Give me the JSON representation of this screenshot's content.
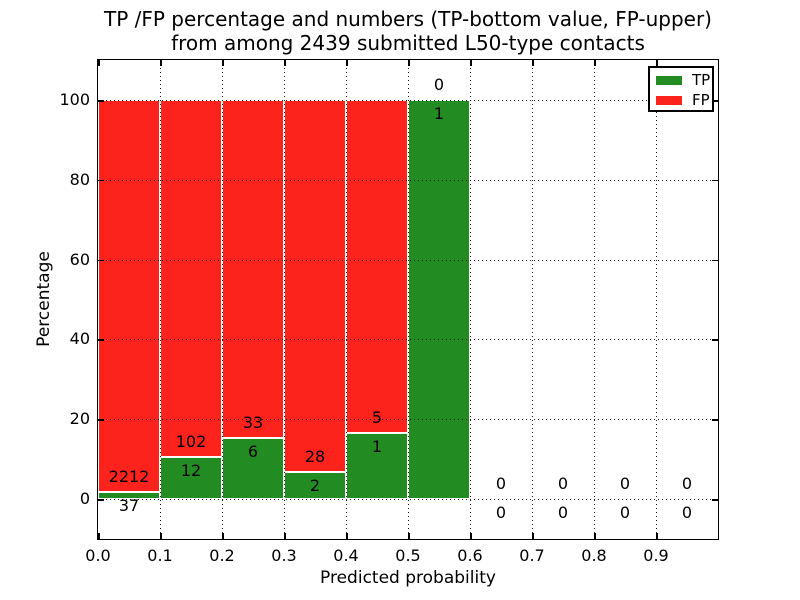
{
  "title": {
    "line1": "TP /FP percentage and numbers (TP-bottom value, FP-upper)",
    "line2": "from among 2439 submitted L50-type contacts"
  },
  "chart_data": {
    "type": "bar",
    "stacked": true,
    "normalization": "each bin stacked to 100% (TP bottom, FP top)",
    "title": "TP /FP percentage and numbers (TP-bottom value, FP-upper)\nfrom among 2439 submitted L50-type contacts",
    "xlabel": "Predicted probability",
    "ylabel": "Percentage",
    "total_contacts": 2439,
    "bin_width": 0.1,
    "bin_starts": [
      0.0,
      0.1,
      0.2,
      0.3,
      0.4,
      0.5,
      0.6,
      0.7,
      0.8,
      0.9
    ],
    "categories": [
      "0.0-0.1",
      "0.1-0.2",
      "0.2-0.3",
      "0.3-0.4",
      "0.4-0.5",
      "0.5-0.6",
      "0.6-0.7",
      "0.7-0.8",
      "0.8-0.9",
      "0.9-1.0"
    ],
    "series": [
      {
        "name": "TP",
        "color": "#228b22",
        "counts": [
          37,
          12,
          6,
          2,
          1,
          1,
          0,
          0,
          0,
          0
        ]
      },
      {
        "name": "FP",
        "color": "#fb231c",
        "counts": [
          2212,
          102,
          33,
          28,
          5,
          0,
          0,
          0,
          0,
          0
        ]
      }
    ],
    "bar_value_labels": "raw counts printed per bin: FP count above TP/FP boundary, TP count below it",
    "xlim": [
      0.0,
      1.0
    ],
    "ylim": [
      -10,
      110
    ],
    "xticks": [
      0.0,
      0.1,
      0.2,
      0.3,
      0.4,
      0.5,
      0.6,
      0.7,
      0.8,
      0.9
    ],
    "xtick_labels": [
      "0.0",
      "0.1",
      "0.2",
      "0.3",
      "0.4",
      "0.5",
      "0.6",
      "0.7",
      "0.8",
      "0.9"
    ],
    "yticks": [
      0,
      20,
      40,
      60,
      80,
      100
    ],
    "ytick_labels": [
      "0",
      "20",
      "40",
      "60",
      "80",
      "100"
    ],
    "grid": true,
    "grid_style": "dotted",
    "legend": {
      "position": "upper right",
      "entries": [
        {
          "label": "TP",
          "color": "#228b22"
        },
        {
          "label": "FP",
          "color": "#fb231c"
        }
      ]
    }
  }
}
